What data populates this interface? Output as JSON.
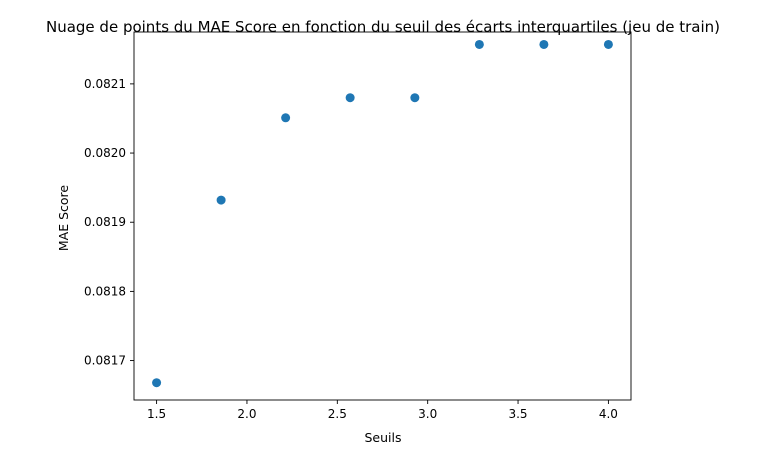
{
  "chart_data": {
    "type": "scatter",
    "title": "Nuage de points du MAE Score en fonction du seuil des écarts interquartiles (jeu de train)",
    "xlabel": "Seuils",
    "ylabel": "MAE Score",
    "x": [
      1.5,
      1.857,
      2.214,
      2.571,
      2.929,
      3.286,
      3.643,
      4.0
    ],
    "y": [
      0.081668,
      0.081932,
      0.082051,
      0.08208,
      0.08208,
      0.082157,
      0.082157,
      0.082157
    ],
    "xlim": [
      1.375,
      4.125
    ],
    "ylim": [
      0.081643,
      0.082175
    ],
    "xticks": [
      1.5,
      2.0,
      2.5,
      3.0,
      3.5,
      4.0
    ],
    "xtick_labels": [
      "1.5",
      "2.0",
      "2.5",
      "3.0",
      "3.5",
      "4.0"
    ],
    "yticks": [
      0.0817,
      0.0818,
      0.0819,
      0.082,
      0.0821
    ],
    "ytick_labels": [
      "0.0817",
      "0.0818",
      "0.0819",
      "0.0820",
      "0.0821"
    ],
    "grid": false,
    "marker_color": "#1f77b4"
  }
}
